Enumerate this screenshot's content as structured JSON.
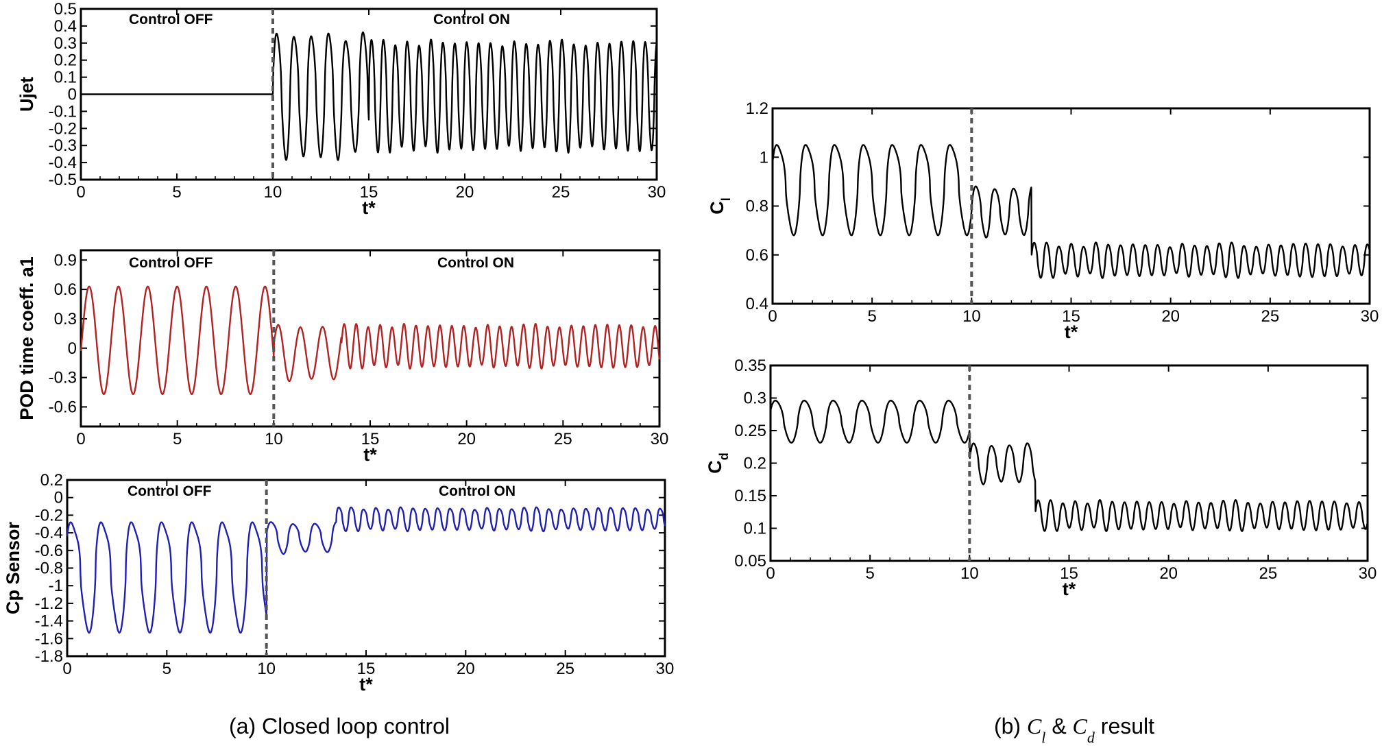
{
  "figure": {
    "caption_a": "(a) Closed loop control",
    "caption_b_prefix": "(b) ",
    "caption_b_cl_main": "C",
    "caption_b_cl_sub": "l",
    "caption_b_amp": " & ",
    "caption_b_cd_main": "C",
    "caption_b_cd_sub": "d",
    "caption_b_suffix": " result"
  },
  "chart_data": [
    {
      "id": "ujet",
      "type": "line",
      "title": "",
      "xlabel": "t*",
      "ylabel": "Ujet",
      "xlim": [
        0,
        30
      ],
      "ylim": [
        -0.5,
        0.5
      ],
      "xticks": [
        "0",
        "5",
        "10",
        "15",
        "20",
        "25",
        "30"
      ],
      "yticks": [
        "0.5",
        "0.4",
        "0.3",
        "0.2",
        "0.1",
        "0",
        "-0.1",
        "-0.2",
        "-0.3",
        "-0.4",
        "-0.5"
      ],
      "annotations": [
        "Control OFF",
        "Control ON"
      ],
      "switch_time": 10,
      "line_color": "#000000",
      "series": [
        {
          "name": "Ujet",
          "description": "zero before t*=10, then jet oscillation",
          "segments": [
            {
              "t_start": 0,
              "t_end": 10,
              "offset": 0,
              "amplitude": 0,
              "period": 1,
              "phase": 0,
              "sharpness": 0,
              "amp_jitter": 0
            },
            {
              "t_start": 10,
              "t_end": 15,
              "offset": 0,
              "amplitude": 0.36,
              "period": 0.9,
              "phase": 0,
              "sharpness": 1.2,
              "amp_jitter": 0.05
            },
            {
              "t_start": 15,
              "t_end": 30,
              "offset": 0,
              "amplitude": 0.31,
              "period": 0.62,
              "phase": 0,
              "sharpness": 1.0,
              "amp_jitter": 0.02
            }
          ]
        }
      ]
    },
    {
      "id": "pod_a1",
      "type": "line",
      "title": "",
      "xlabel": "t*",
      "ylabel": "POD time coeff.  a1",
      "xlim": [
        0,
        30
      ],
      "ylim": [
        -0.8,
        1.0
      ],
      "xticks": [
        "0",
        "5",
        "10",
        "15",
        "20",
        "25",
        "30"
      ],
      "yticks": [
        "0.9",
        "0.6",
        "0.3",
        "0",
        "-0.3",
        "-0.6"
      ],
      "ytick_values": [
        0.9,
        0.6,
        0.3,
        0,
        -0.3,
        -0.6
      ],
      "annotations": [
        "Control OFF",
        "Control ON"
      ],
      "switch_time": 10,
      "line_color": "#b22222",
      "series": [
        {
          "name": "a1",
          "segments": [
            {
              "t_start": 0,
              "t_end": 10,
              "offset": 0.08,
              "amplitude": 0.55,
              "period": 1.52,
              "phase": -0.2,
              "sharpness": 0,
              "amp_jitter": 0
            },
            {
              "t_start": 10,
              "t_end": 13.5,
              "offset": -0.05,
              "amplitude": 0.28,
              "period": 1.15,
              "phase": 0.3,
              "sharpness": 0,
              "amp_jitter": 0.06
            },
            {
              "t_start": 13.5,
              "t_end": 30,
              "offset": 0.02,
              "amplitude": 0.21,
              "period": 0.62,
              "phase": 0,
              "sharpness": 0,
              "amp_jitter": 0.02
            }
          ]
        }
      ]
    },
    {
      "id": "cp_sensor",
      "type": "line",
      "title": "",
      "xlabel": "t*",
      "ylabel": "Cp Sensor",
      "xlim": [
        0,
        30
      ],
      "ylim": [
        -1.8,
        0.2
      ],
      "xticks": [
        "0",
        "5",
        "10",
        "15",
        "20",
        "25",
        "30"
      ],
      "yticks": [
        "0.2",
        "0",
        "-0.2",
        "-0.4",
        "-0.6",
        "-0.8",
        "-1",
        "-1.2",
        "-1.4",
        "-1.6",
        "-1.8"
      ],
      "annotations": [
        "Control OFF",
        "Control ON"
      ],
      "switch_time": 10,
      "line_color": "#1f1fb4",
      "series": [
        {
          "name": "Cp",
          "segments": [
            {
              "t_start": 0,
              "t_end": 10,
              "offset": -0.87,
              "amplitude": 0.6,
              "period": 1.52,
              "phase": 0.4,
              "sharpness": 2.2,
              "amp_jitter": 0
            },
            {
              "t_start": 10,
              "t_end": 13.5,
              "offset": -0.45,
              "amplitude": 0.17,
              "period": 1.1,
              "phase": 0,
              "sharpness": 1.5,
              "amp_jitter": 0.06
            },
            {
              "t_start": 13.5,
              "t_end": 30,
              "offset": -0.24,
              "amplitude": 0.12,
              "period": 0.62,
              "phase": 0,
              "sharpness": 1.5,
              "amp_jitter": 0.015
            }
          ]
        }
      ]
    },
    {
      "id": "cl",
      "type": "line",
      "title": "",
      "xlabel": "t*",
      "ylabel_main": "C",
      "ylabel_sub": "l",
      "xlim": [
        0,
        30
      ],
      "ylim": [
        0.4,
        1.2
      ],
      "xticks": [
        "0",
        "5",
        "10",
        "15",
        "20",
        "25",
        "30"
      ],
      "yticks": [
        "1.2",
        "1",
        "0.8",
        "0.6",
        "0.4"
      ],
      "switch_time": 10,
      "line_color": "#000000",
      "series": [
        {
          "name": "Cl",
          "segments": [
            {
              "t_start": 0,
              "t_end": 10,
              "offset": 0.875,
              "amplitude": 0.18,
              "period": 1.45,
              "phase": 0.3,
              "sharpness": 1.8,
              "amp_jitter": 0
            },
            {
              "t_start": 10,
              "t_end": 13,
              "offset": 0.78,
              "amplitude": 0.1,
              "period": 0.95,
              "phase": 0,
              "sharpness": 1.2,
              "amp_jitter": 0.03
            },
            {
              "t_start": 13,
              "t_end": 30,
              "offset": 0.58,
              "amplitude": 0.063,
              "period": 0.62,
              "phase": 0,
              "sharpness": 0.8,
              "amp_jitter": 0.01
            }
          ]
        }
      ]
    },
    {
      "id": "cd",
      "type": "line",
      "title": "",
      "xlabel": "t*",
      "ylabel_main": "C",
      "ylabel_sub": "d",
      "xlim": [
        0,
        30
      ],
      "ylim": [
        0.05,
        0.35
      ],
      "xticks": [
        "0",
        "5",
        "10",
        "15",
        "20",
        "25",
        "30"
      ],
      "yticks": [
        "0.35",
        "0.3",
        "0.25",
        "0.2",
        "0.15",
        "0.1",
        "0.05"
      ],
      "ytick_values": [
        0.35,
        0.3,
        0.25,
        0.2,
        0.15,
        0.1,
        0.05
      ],
      "switch_time": 10,
      "line_color": "#000000",
      "series": [
        {
          "name": "Cd",
          "segments": [
            {
              "t_start": 0,
              "t_end": 10,
              "offset": 0.265,
              "amplitude": 0.032,
              "period": 1.45,
              "phase": 0.3,
              "sharpness": 1.2,
              "amp_jitter": 0
            },
            {
              "t_start": 10,
              "t_end": 13.3,
              "offset": 0.2,
              "amplitude": 0.03,
              "period": 0.9,
              "phase": 0,
              "sharpness": 1.0,
              "amp_jitter": 0.01
            },
            {
              "t_start": 13.3,
              "t_end": 30,
              "offset": 0.12,
              "amplitude": 0.021,
              "period": 0.62,
              "phase": 0,
              "sharpness": 0.6,
              "amp_jitter": 0.003
            }
          ]
        }
      ]
    }
  ]
}
